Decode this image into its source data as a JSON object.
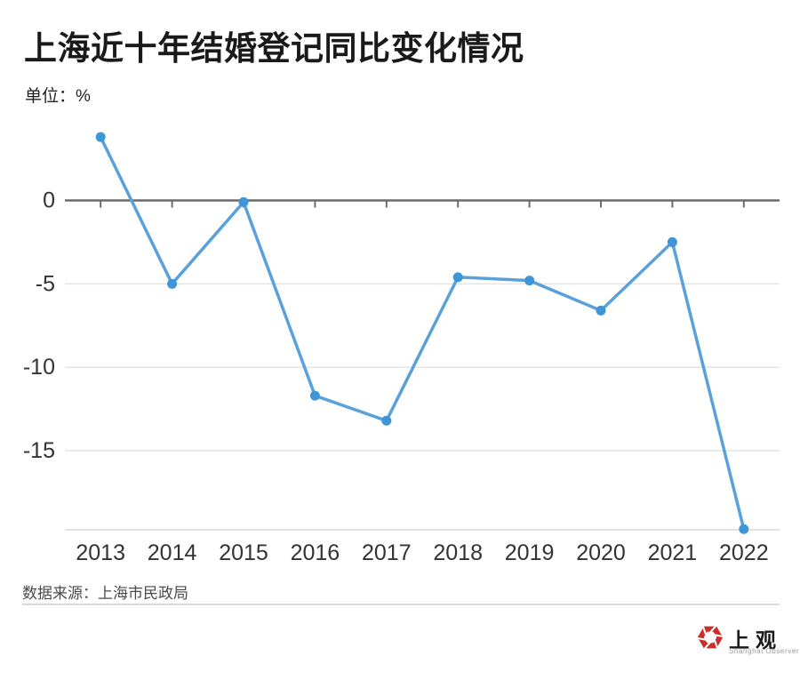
{
  "header": {
    "title": "上海近十年结婚登记同比变化情况",
    "unit_label": "单位：%"
  },
  "chart_data": {
    "type": "line",
    "title": "上海近十年结婚登记同比变化情况",
    "unit": "%",
    "categories": [
      "2013",
      "2014",
      "2015",
      "2016",
      "2017",
      "2018",
      "2019",
      "2020",
      "2021",
      "2022"
    ],
    "values": [
      3.8,
      -5.0,
      -0.1,
      -11.7,
      -13.2,
      -4.6,
      -4.8,
      -6.6,
      -2.5,
      -19.7
    ],
    "y_ticks": [
      0,
      -5,
      -10,
      -15
    ],
    "ylim": [
      -19.8,
      4.5
    ],
    "grid": "horizontal-only",
    "legend": "none",
    "line_color": "#5aa1db",
    "marker_color": "#3e95d8",
    "axis_color": "#6b6b6b",
    "grid_color": "#e4e4e4",
    "plot_bottom_color": "#d9d9d9",
    "label_color": "#333333"
  },
  "footer": {
    "source": "数据来源：上海市民政局"
  },
  "logo": {
    "name_cn": "上观",
    "name_en": "Shanghai Observer",
    "brand_color": "#c9302a"
  }
}
